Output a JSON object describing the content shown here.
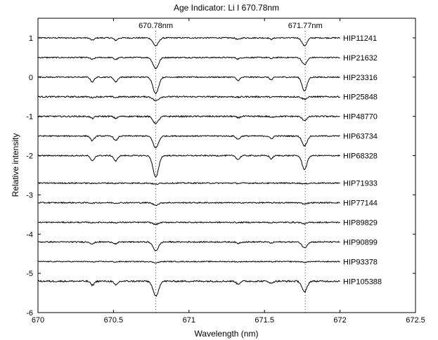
{
  "chart_data": {
    "type": "line",
    "title": "Age Indicator: Li I 670.78nm",
    "xlabel": "Wavelength (nm)",
    "ylabel": "Relative intensity",
    "xlim": [
      670,
      672.5
    ],
    "ylim": [
      -6,
      1.5
    ],
    "xticks": [
      "670",
      "670.5",
      "671",
      "671.5",
      "672",
      "672.5"
    ],
    "yticks": [
      "1",
      "0",
      "-1",
      "-2",
      "-3",
      "-4",
      "-5",
      "-6"
    ],
    "spectrum_range": [
      670,
      672
    ],
    "reference_lines": [
      {
        "label": "670.78nm",
        "x": 670.78
      },
      {
        "label": "671.77nm",
        "x": 671.77
      }
    ],
    "series": [
      {
        "name": "HIP11241",
        "offset": 1.0,
        "li_depth": 0.2,
        "fe_depth": 0.2,
        "weak_depth": 0.06,
        "noise": 0.015
      },
      {
        "name": "HIP21632",
        "offset": 0.5,
        "li_depth": 0.28,
        "fe_depth": 0.18,
        "weak_depth": 0.05,
        "noise": 0.015
      },
      {
        "name": "HIP23316",
        "offset": 0.0,
        "li_depth": 0.42,
        "fe_depth": 0.35,
        "weak_depth": 0.12,
        "noise": 0.015
      },
      {
        "name": "HIP25848",
        "offset": -0.5,
        "li_depth": 0.1,
        "fe_depth": 0.06,
        "weak_depth": 0.02,
        "noise": 0.018
      },
      {
        "name": "HIP48770",
        "offset": -1.0,
        "li_depth": 0.18,
        "fe_depth": 0.1,
        "weak_depth": 0.05,
        "noise": 0.018
      },
      {
        "name": "HIP63734",
        "offset": -1.5,
        "li_depth": 0.3,
        "fe_depth": 0.25,
        "weak_depth": 0.12,
        "noise": 0.015
      },
      {
        "name": "HIP68328",
        "offset": -2.0,
        "li_depth": 0.55,
        "fe_depth": 0.35,
        "weak_depth": 0.14,
        "noise": 0.015
      },
      {
        "name": "HIP71933",
        "offset": -2.7,
        "li_depth": 0.03,
        "fe_depth": 0.02,
        "weak_depth": 0.01,
        "noise": 0.015
      },
      {
        "name": "HIP77144",
        "offset": -3.2,
        "li_depth": 0.06,
        "fe_depth": 0.03,
        "weak_depth": 0.01,
        "noise": 0.015
      },
      {
        "name": "HIP89829",
        "offset": -3.7,
        "li_depth": 0.05,
        "fe_depth": 0.04,
        "weak_depth": 0.01,
        "noise": 0.015
      },
      {
        "name": "HIP90899",
        "offset": -4.2,
        "li_depth": 0.22,
        "fe_depth": 0.15,
        "weak_depth": 0.05,
        "noise": 0.015
      },
      {
        "name": "HIP93378",
        "offset": -4.7,
        "li_depth": 0.03,
        "fe_depth": 0.02,
        "weak_depth": 0.01,
        "noise": 0.012
      },
      {
        "name": "HIP105388",
        "offset": -5.2,
        "li_depth": 0.38,
        "fe_depth": 0.28,
        "weak_depth": 0.1,
        "noise": 0.02
      }
    ],
    "grid": false,
    "legend": "none"
  }
}
